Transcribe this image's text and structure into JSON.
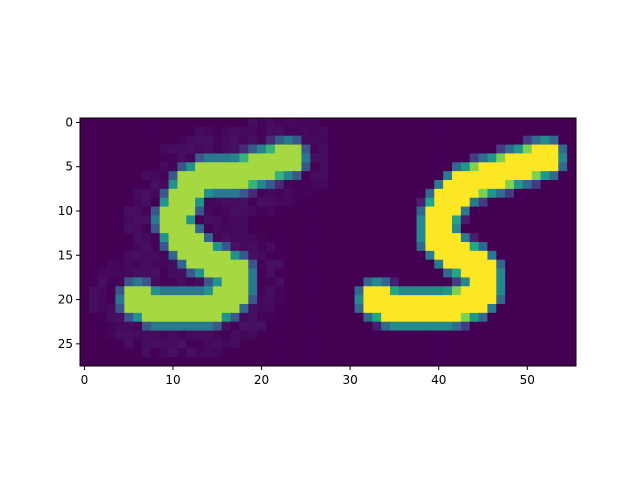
{
  "chart_data": {
    "type": "heatmap",
    "title": "",
    "xlabel": "",
    "ylabel": "",
    "grid": false,
    "colormap": "viridis",
    "image_size": [
      28,
      56
    ],
    "xlim": [
      -0.5,
      55.5
    ],
    "ylim": [
      27.5,
      -0.5
    ],
    "x_ticks": [
      0,
      10,
      20,
      30,
      40,
      50
    ],
    "y_ticks": [
      0,
      5,
      10,
      15,
      20,
      25
    ],
    "x_tick_labels": [
      "0",
      "10",
      "20",
      "30",
      "40",
      "50"
    ],
    "y_tick_labels": [
      "0",
      "5",
      "10",
      "15",
      "20",
      "25"
    ],
    "panels": [
      {
        "name": "",
        "col_offset": 0,
        "description": "reconstructed digit",
        "strokes": [
          {
            "points": [
              [
                23,
                4
              ],
              [
                20,
                5
              ],
              [
                17,
                6
              ],
              [
                14,
                6
              ],
              [
                12,
                7
              ],
              [
                11,
                9
              ],
              [
                10,
                11
              ],
              [
                11,
                13
              ],
              [
                13,
                15
              ],
              [
                15,
                16
              ],
              [
                17,
                17
              ],
              [
                17,
                19
              ],
              [
                16,
                20
              ],
              [
                14,
                21
              ],
              [
                11,
                21
              ],
              [
                8,
                21
              ],
              [
                6,
                20
              ]
            ],
            "width": 2.6,
            "value": 0.92
          }
        ],
        "noise": 0.06
      },
      {
        "name": "",
        "col_offset": 28,
        "description": "original digit",
        "strokes": [
          {
            "points": [
              [
                24,
                4
              ],
              [
                21,
                5
              ],
              [
                18,
                6
              ],
              [
                15,
                7
              ],
              [
                13,
                9
              ],
              [
                12,
                11
              ],
              [
                12,
                13
              ],
              [
                14,
                15
              ],
              [
                16,
                16
              ],
              [
                17,
                17
              ],
              [
                17,
                19
              ],
              [
                16,
                20
              ],
              [
                13,
                21
              ],
              [
                10,
                21
              ],
              [
                7,
                21
              ],
              [
                5,
                20
              ]
            ],
            "width": 2.7,
            "value": 1.0
          }
        ],
        "noise": 0.0
      }
    ]
  }
}
